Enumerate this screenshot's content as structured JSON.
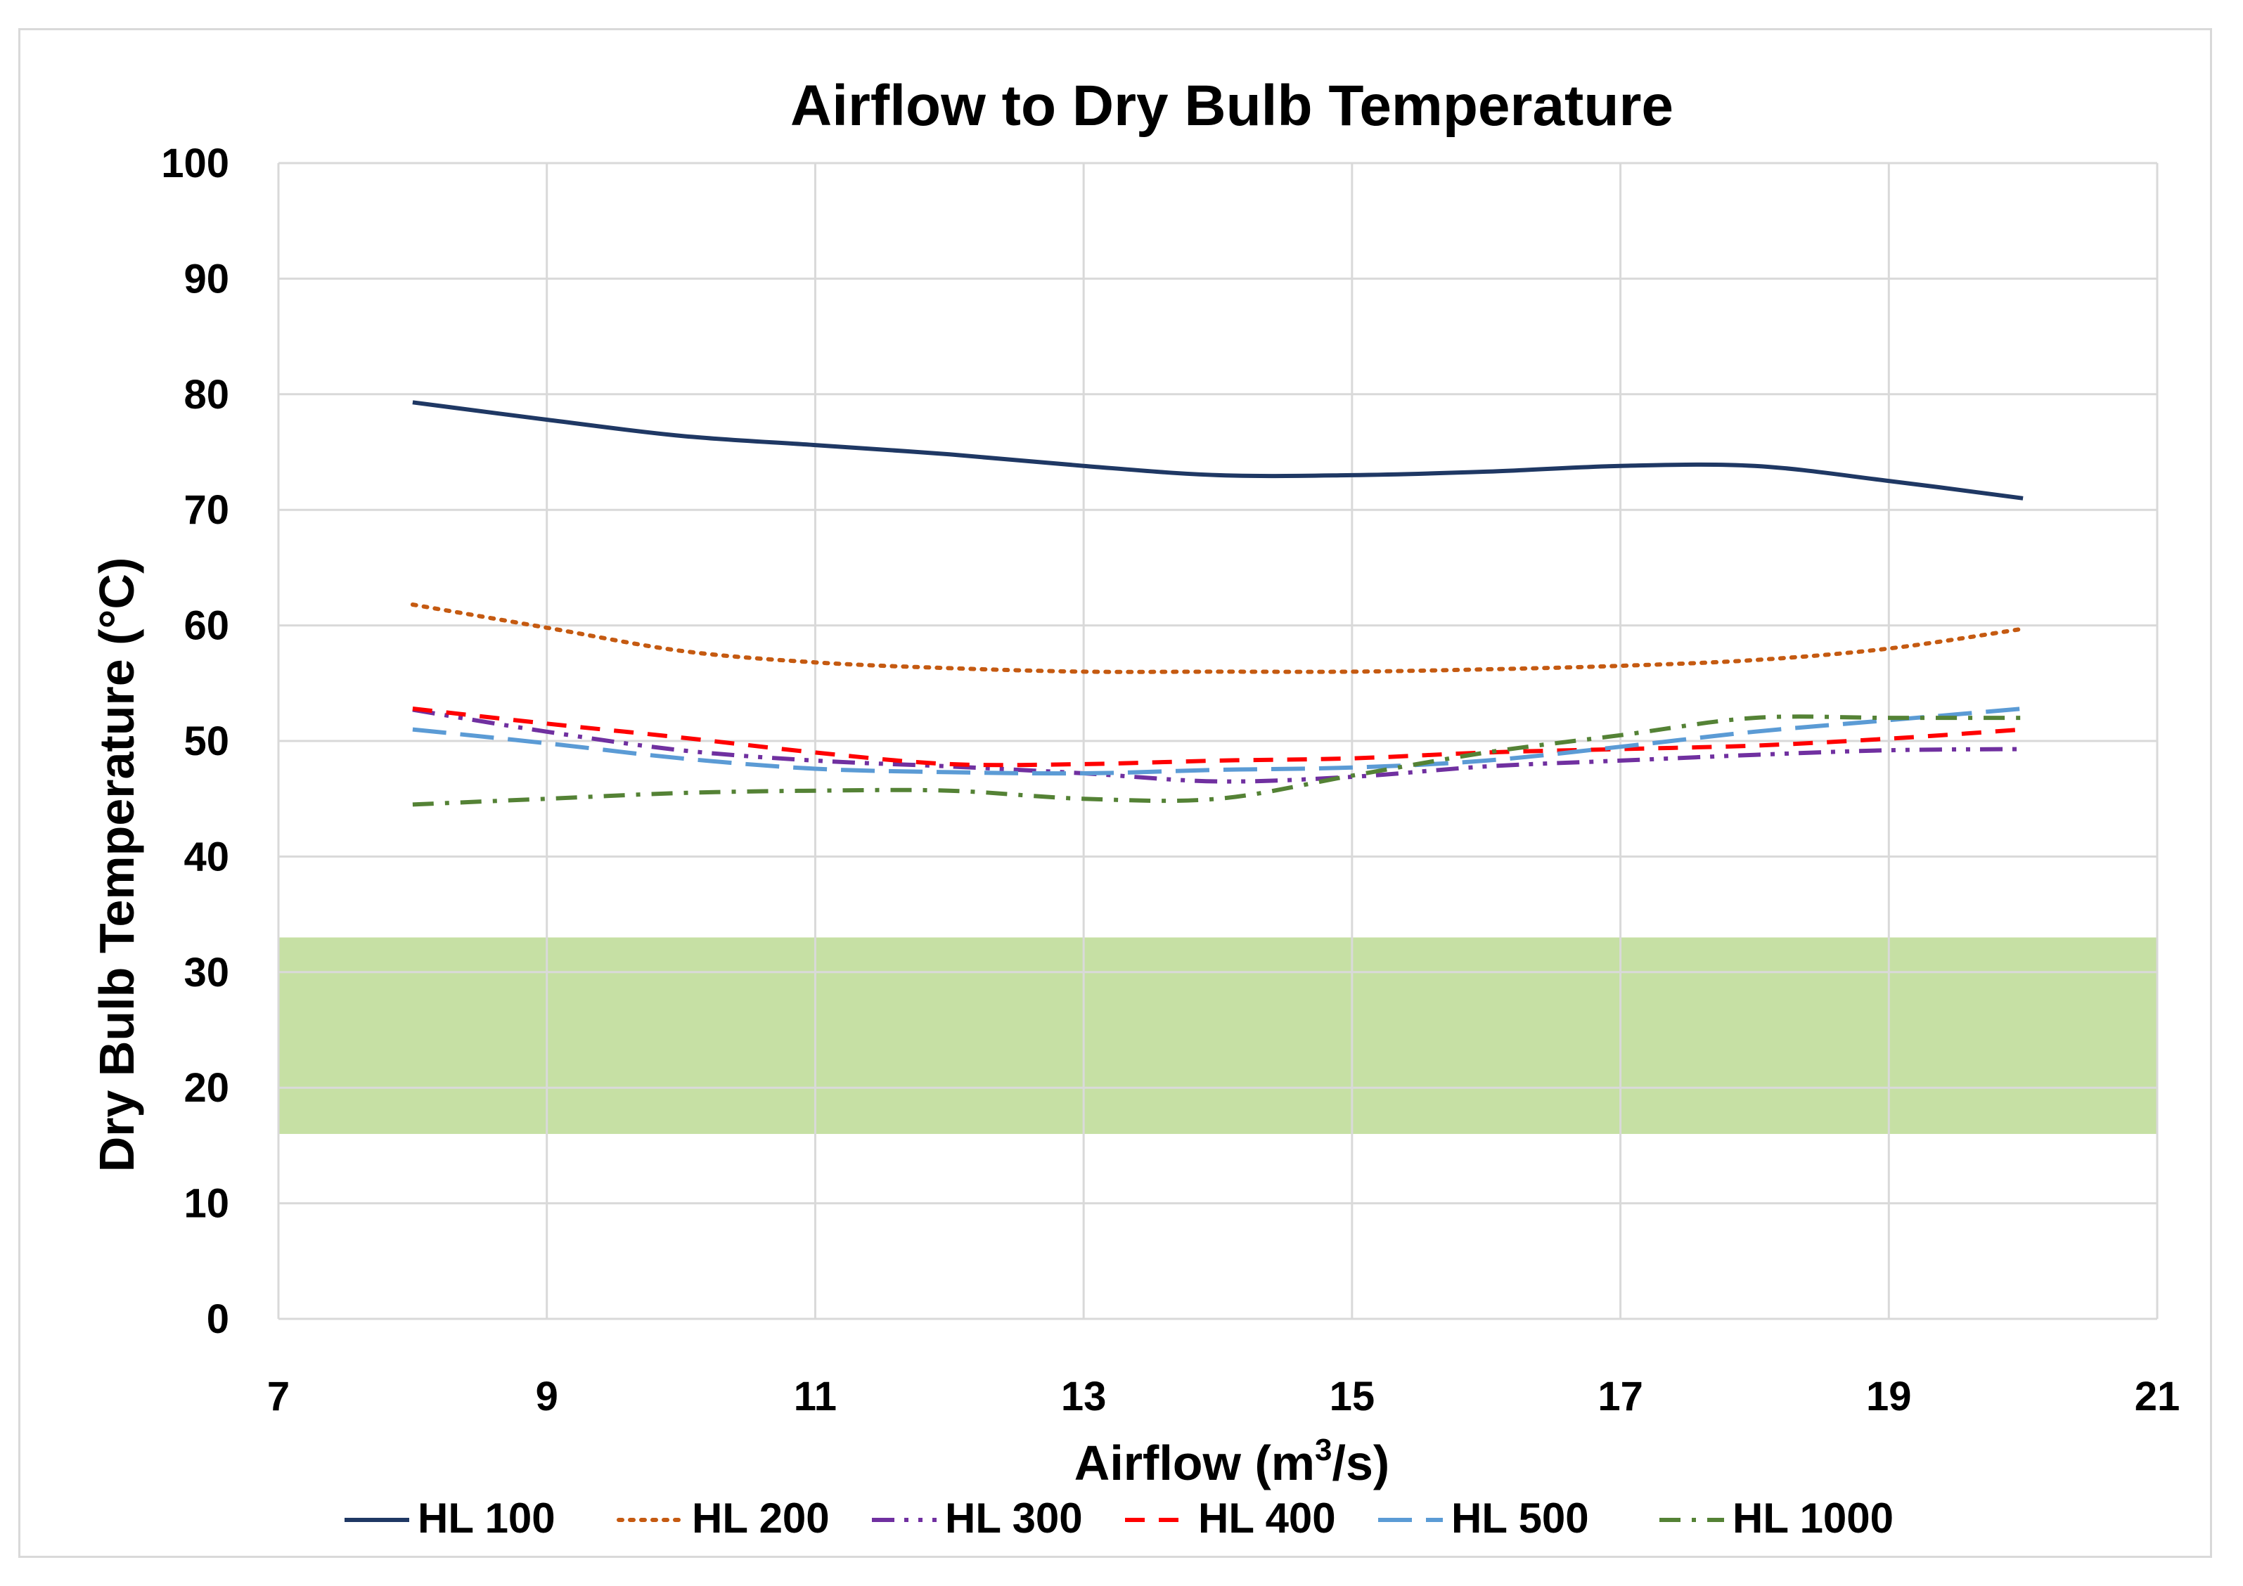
{
  "chart_data": {
    "type": "line",
    "title": "Airflow to Dry Bulb Temperature",
    "xlabel_main": "Airflow (m",
    "xlabel_sup": "3",
    "xlabel_end": "/s)",
    "ylabel": "Dry Bulb Temperature (°C)",
    "xlim": [
      7,
      21
    ],
    "ylim": [
      0,
      100
    ],
    "xticks": [
      7,
      9,
      11,
      13,
      15,
      17,
      19,
      21
    ],
    "yticks": [
      0,
      10,
      20,
      30,
      40,
      50,
      60,
      70,
      80,
      90,
      100
    ],
    "grid": true,
    "legend_position": "bottom",
    "comfort_band": {
      "from": 16,
      "to": 33,
      "color": "#c6e0a4"
    },
    "x": [
      8,
      9,
      10,
      11,
      12,
      13,
      14,
      15,
      16,
      17,
      18,
      19,
      20
    ],
    "series": [
      {
        "name": "HL 100",
        "color": "#1f3864",
        "dash": "solid",
        "values": [
          79.3,
          77.8,
          76.4,
          75.6,
          74.8,
          73.8,
          73.0,
          73.0,
          73.3,
          73.8,
          73.8,
          72.5,
          71.0
        ]
      },
      {
        "name": "HL 200",
        "color": "#c55a11",
        "dash": "dot",
        "values": [
          61.8,
          59.8,
          57.8,
          56.8,
          56.3,
          56.0,
          56.0,
          56.0,
          56.2,
          56.5,
          57.0,
          58.0,
          59.7
        ]
      },
      {
        "name": "HL 300",
        "color": "#7030a0",
        "dash": "dashdotdot",
        "values": [
          52.7,
          50.8,
          49.2,
          48.3,
          47.8,
          47.2,
          46.5,
          46.9,
          47.8,
          48.3,
          48.8,
          49.2,
          49.3
        ]
      },
      {
        "name": "HL 400",
        "color": "#ff0000",
        "dash": "dash",
        "values": [
          52.8,
          51.5,
          50.3,
          49.0,
          48.0,
          48.0,
          48.3,
          48.5,
          49.0,
          49.3,
          49.6,
          50.2,
          51.0
        ]
      },
      {
        "name": "HL 500",
        "color": "#5b9bd5",
        "dash": "longdash",
        "values": [
          51.0,
          49.8,
          48.5,
          47.6,
          47.3,
          47.2,
          47.5,
          47.7,
          48.3,
          49.5,
          50.8,
          51.8,
          52.8
        ]
      },
      {
        "name": "HL 1000",
        "color": "#548235",
        "dash": "dashdot",
        "values": [
          44.5,
          45.0,
          45.5,
          45.7,
          45.7,
          45.0,
          45.0,
          47.0,
          49.0,
          50.5,
          52.0,
          52.0,
          52.0
        ]
      }
    ]
  }
}
